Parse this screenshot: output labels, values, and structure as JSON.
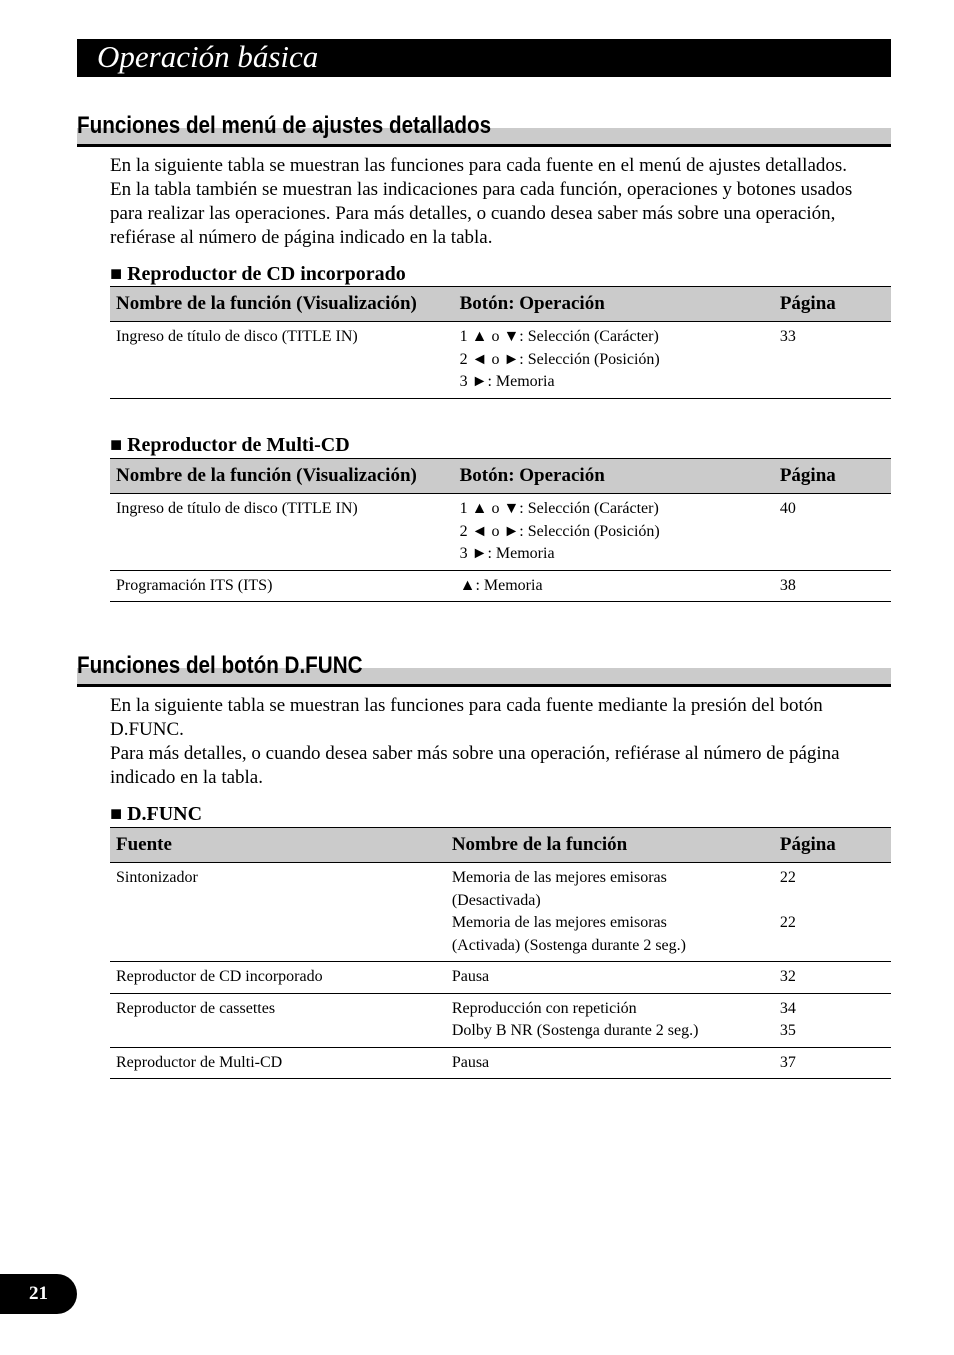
{
  "header": {
    "title": "Operación básica"
  },
  "section1": {
    "heading": "Funciones del menú de ajustes detallados",
    "paragraph": "En la siguiente tabla se muestran las funciones para cada fuente en el menú de ajustes detallados. En la tabla también se muestran las indicaciones para cada función, operaciones y botones usados para realizar las operaciones. Para más detalles, o cuando desea saber más sobre una operación, refiérase al número de página indicado en la tabla.",
    "columns": [
      "Nombre de la función (Visualización)",
      "Botón: Operación",
      "Página"
    ],
    "table1": {
      "title": "■ Reproductor de CD incorporado",
      "rows": [
        {
          "name": "Ingreso de título de disco (TITLE IN)",
          "ops": [
            "1 ▲ o ▼: Selección (Carácter)",
            "2 ◄ o ►: Selección (Posición)",
            "3 ►: Memoria"
          ],
          "page": "33"
        }
      ]
    },
    "table2": {
      "title": "■ Reproductor de Multi-CD",
      "rows": [
        {
          "name": "Ingreso de título de disco (TITLE IN)",
          "ops": [
            "1 ▲ o ▼: Selección (Carácter)",
            "2 ◄ o ►: Selección (Posición)",
            "3 ►: Memoria"
          ],
          "page": "40"
        },
        {
          "name": "Programación ITS (ITS)",
          "ops": [
            "▲: Memoria"
          ],
          "page": "38"
        }
      ]
    }
  },
  "section2": {
    "heading": "Funciones del botón D.FUNC",
    "paragraph1": "En la siguiente tabla se muestran las funciones para cada fuente mediante la presión del botón D.FUNC.",
    "paragraph2": "Para más detalles, o cuando desea saber más sobre una operación, refiérase al número de página indicado en la tabla.",
    "table": {
      "title": "■ D.FUNC",
      "columns": [
        "Fuente",
        "Nombre de la función",
        "Página"
      ],
      "rows": [
        {
          "source": "Sintonizador",
          "funcs": [
            "Memoria de las mejores emisoras",
            "(Desactivada)",
            "Memoria de las mejores emisoras",
            "(Activada) (Sostenga durante 2 seg.)"
          ],
          "pages": [
            "22",
            "",
            "22",
            ""
          ]
        },
        {
          "source": "Reproductor de CD incorporado",
          "funcs": [
            "Pausa"
          ],
          "pages": [
            "32"
          ]
        },
        {
          "source": "Reproductor de cassettes",
          "funcs": [
            "Reproducción con repetición",
            "Dolby B NR (Sostenga durante 2 seg.)"
          ],
          "pages": [
            "34",
            "35"
          ]
        },
        {
          "source": "Reproductor de Multi-CD",
          "funcs": [
            "Pausa"
          ],
          "pages": [
            "37"
          ]
        }
      ]
    }
  },
  "footer": {
    "page_number": "21"
  }
}
